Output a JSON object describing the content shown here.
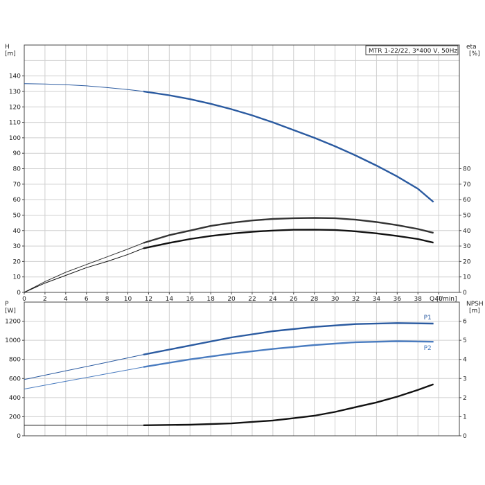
{
  "chart_data": [
    {
      "type": "line",
      "title": "MTR 1-22/22, 3*400 V, 50Hz",
      "xlabel": "Q [l/min]",
      "x_ticks": [
        0,
        2,
        4,
        6,
        8,
        10,
        12,
        14,
        16,
        18,
        20,
        22,
        24,
        26,
        28,
        30,
        32,
        34,
        36,
        38,
        40
      ],
      "xlim": [
        0,
        42
      ],
      "ylabel_left_top": "H",
      "ylabel_left_bottom": "[m]",
      "ylim_left": [
        0,
        160
      ],
      "y_ticks_left": [
        0,
        10,
        20,
        30,
        40,
        50,
        60,
        70,
        80,
        90,
        100,
        110,
        120,
        130,
        140
      ],
      "ylabel_right_top": "eta",
      "ylabel_right_bottom": "[%]",
      "ylim_right": [
        0,
        160
      ],
      "y_ticks_right": [
        0,
        10,
        20,
        30,
        40,
        50,
        60,
        70,
        80
      ],
      "grid": true,
      "series": [
        {
          "color": "#2a5aa0",
          "axis": "left",
          "x": [
            0,
            2,
            4,
            6,
            8,
            10,
            11.5,
            14,
            16,
            18,
            20,
            22,
            24,
            26,
            28,
            30,
            32,
            34,
            36,
            38,
            39.5
          ],
          "values": [
            135,
            134.8,
            134.3,
            133.6,
            132.5,
            131.2,
            130,
            127.5,
            125,
            122,
            118.5,
            114.5,
            110,
            105,
            100,
            94.5,
            88.5,
            82,
            75,
            67,
            58.5
          ],
          "highlight_from": 11.5
        },
        {
          "color": "#333333",
          "axis": "right",
          "x": [
            0,
            2,
            4,
            6,
            8,
            10,
            11.5,
            14,
            16,
            18,
            20,
            22,
            24,
            26,
            28,
            30,
            32,
            34,
            36,
            38,
            39.5
          ],
          "values": [
            0,
            7,
            13,
            18,
            23,
            28,
            32,
            37,
            40,
            43,
            45,
            46.5,
            47.5,
            48,
            48.2,
            48,
            47,
            45.5,
            43.5,
            41,
            38.5
          ],
          "highlight_from": 11.5
        },
        {
          "color": "#111111",
          "axis": "right",
          "x": [
            0,
            2,
            4,
            6,
            8,
            10,
            11.5,
            14,
            16,
            18,
            20,
            22,
            24,
            26,
            28,
            30,
            32,
            34,
            36,
            38,
            39.5
          ],
          "values": [
            0,
            6,
            11,
            16,
            20,
            24.5,
            28.5,
            32,
            34.5,
            36.5,
            38,
            39.2,
            40,
            40.5,
            40.6,
            40.4,
            39.5,
            38.2,
            36.5,
            34.5,
            32.2
          ],
          "highlight_from": 11.5
        }
      ]
    },
    {
      "type": "line",
      "xlim": [
        0,
        42
      ],
      "ylabel_left_top": "P",
      "ylabel_left_bottom": "[W]",
      "ylim_left": [
        0,
        1400
      ],
      "y_ticks_left": [
        0,
        200,
        400,
        600,
        800,
        1000,
        1200
      ],
      "ylabel_right_top": "NPSH",
      "ylabel_right_bottom": "[m]",
      "ylim_right": [
        0,
        7
      ],
      "y_ticks_right": [
        0,
        1,
        2,
        3,
        4,
        5,
        6
      ],
      "grid": true,
      "series": [
        {
          "name": "P1",
          "color": "#2a5aa0",
          "axis": "left",
          "x": [
            0,
            4,
            8,
            11.5,
            16,
            20,
            24,
            28,
            32,
            36,
            39.5
          ],
          "values": [
            590,
            680,
            770,
            850,
            945,
            1030,
            1095,
            1140,
            1170,
            1180,
            1175
          ],
          "highlight_from": 11.5
        },
        {
          "name": "P2",
          "color": "#4a7cc0",
          "axis": "left",
          "x": [
            0,
            4,
            8,
            11.5,
            16,
            20,
            24,
            28,
            32,
            36,
            39.5
          ],
          "values": [
            490,
            570,
            650,
            720,
            800,
            860,
            910,
            950,
            980,
            990,
            985
          ],
          "highlight_from": 11.5
        },
        {
          "color": "#111111",
          "axis": "right",
          "x": [
            0,
            4,
            8,
            11.5,
            16,
            20,
            24,
            26,
            28,
            30,
            32,
            34,
            36,
            38,
            39.5
          ],
          "values": [
            0.55,
            0.55,
            0.55,
            0.55,
            0.58,
            0.65,
            0.8,
            0.92,
            1.05,
            1.25,
            1.5,
            1.75,
            2.05,
            2.4,
            2.7
          ],
          "highlight_from": 11.5
        }
      ]
    }
  ]
}
